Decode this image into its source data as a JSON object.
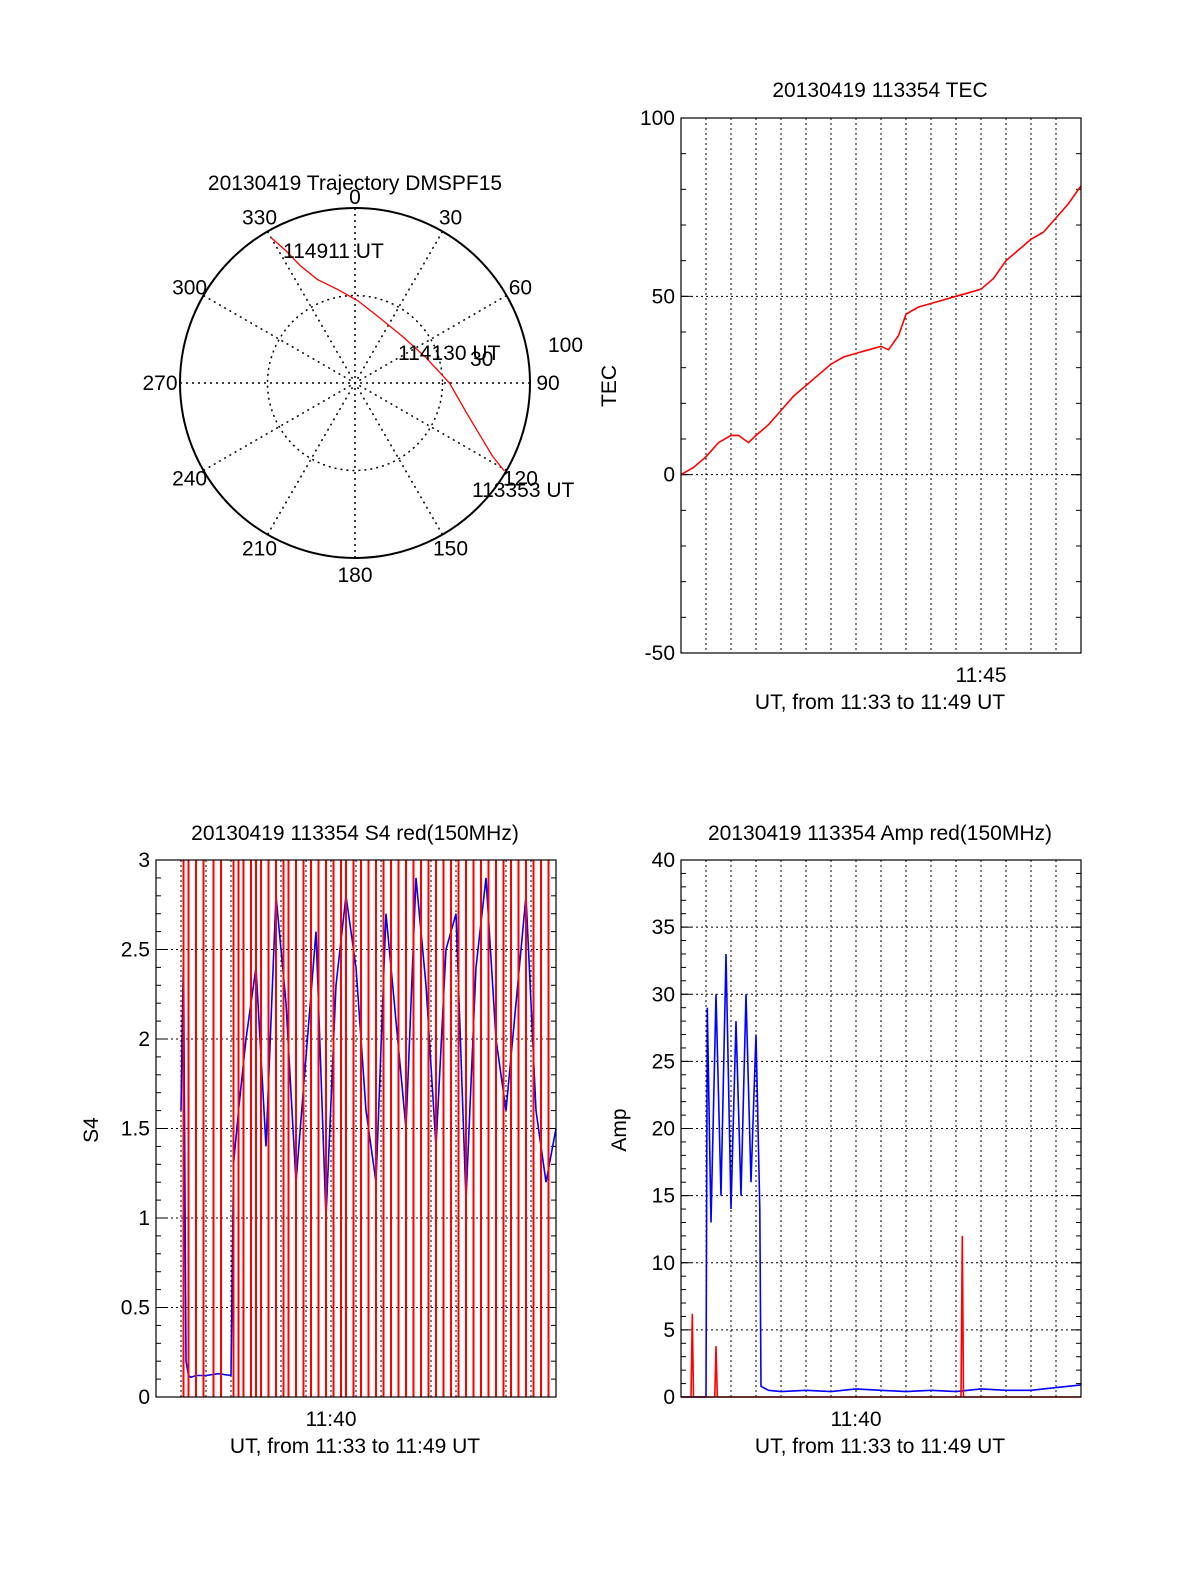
{
  "colors": {
    "red": "#ff0000",
    "blue": "#0000ff",
    "axis": "#000000",
    "grid": "#000000"
  },
  "chart_data": [
    {
      "type": "polar",
      "title": "20130419 Trajectory DMSPF15",
      "angle_labels": [
        "0",
        "30",
        "60",
        "90",
        "120",
        "150",
        "180",
        "210",
        "240",
        "270",
        "300",
        "330"
      ],
      "radius_labels": [
        "30",
        "100"
      ],
      "track_points": [
        {
          "az": 330.0,
          "r": 96
        },
        {
          "az": 332.5,
          "r": 85
        },
        {
          "az": 335.0,
          "r": 74
        },
        {
          "az": 340.0,
          "r": 63
        },
        {
          "az": 350.0,
          "r": 54
        },
        {
          "az": 2.0,
          "r": 47
        },
        {
          "az": 20.0,
          "r": 40
        },
        {
          "az": 45.0,
          "r": 38
        },
        {
          "az": 70.0,
          "r": 43
        },
        {
          "az": 90.0,
          "r": 54
        },
        {
          "az": 105.0,
          "r": 66
        },
        {
          "az": 113.0,
          "r": 78
        },
        {
          "az": 118.0,
          "r": 89
        },
        {
          "az": 120.5,
          "r": 99
        }
      ],
      "annotations": [
        "114911 UT",
        "114130 UT",
        "113353 UT"
      ]
    },
    {
      "type": "line",
      "title": "20130419 113354 TEC",
      "xlabel": "UT, from 11:33 to 11:49 UT",
      "ylabel": "TEC",
      "xlim": [
        0,
        16
      ],
      "ylim": [
        -50,
        100
      ],
      "yticks": [
        "-50",
        "0",
        "50",
        "100"
      ],
      "xticks": [
        {
          "x": 12,
          "label": "11:45"
        }
      ],
      "grid": true,
      "series": [
        {
          "color": "red",
          "x": [
            0,
            0.5,
            1,
            1.5,
            2,
            2.3,
            2.7,
            3,
            3.5,
            4,
            4.5,
            5,
            5.5,
            6,
            6.5,
            7,
            7.5,
            8,
            8.3,
            8.7,
            9,
            9.5,
            10,
            10.5,
            11,
            11.5,
            12,
            12.5,
            13,
            13.5,
            14,
            14.5,
            15,
            15.5,
            16
          ],
          "values": [
            0,
            2,
            5,
            9,
            11,
            11,
            9,
            11,
            14,
            18,
            22,
            25,
            28,
            31,
            33,
            34,
            35,
            36,
            35,
            39,
            45,
            47,
            48,
            49,
            50,
            51,
            52,
            55,
            60,
            63,
            66,
            68,
            72,
            76,
            81
          ]
        }
      ]
    },
    {
      "type": "line",
      "title": "20130419 113354 S4 red(150MHz)",
      "xlabel": "UT, from 11:33 to 11:49 UT",
      "ylabel": "S4",
      "xlim": [
        0,
        16
      ],
      "ylim": [
        0,
        3
      ],
      "yticks": [
        "0",
        "0.5",
        "1",
        "1.5",
        "2",
        "2.5",
        "3"
      ],
      "xticks": [
        {
          "x": 7,
          "label": "11:40"
        }
      ],
      "grid": true,
      "series": [
        {
          "color": "blue",
          "x": [
            1,
            1.1,
            1.2,
            1.3,
            1.4,
            1.6,
            2,
            2.5,
            3,
            3.1,
            3.3,
            3.6,
            4,
            4.4,
            4.8,
            5.2,
            5.6,
            6,
            6.4,
            6.8,
            7.2,
            7.6,
            8,
            8.4,
            8.8,
            9.2,
            9.6,
            10,
            10.4,
            10.8,
            11.2,
            11.6,
            12,
            12.4,
            12.8,
            13.2,
            13.6,
            14,
            14.4,
            14.8,
            15.2,
            15.6,
            16
          ],
          "values": [
            1.6,
            2.5,
            0.2,
            0.12,
            0.11,
            0.12,
            0.12,
            0.13,
            0.12,
            1.3,
            1.6,
            2.0,
            2.4,
            1.4,
            2.8,
            2.2,
            1.2,
            1.9,
            2.6,
            1.0,
            2.3,
            2.8,
            2.4,
            1.6,
            1.2,
            2.7,
            2.1,
            1.5,
            2.9,
            2.3,
            1.4,
            2.5,
            2.7,
            1.1,
            2.4,
            2.9,
            2.0,
            1.6,
            2.2,
            2.8,
            1.6,
            1.2,
            1.5
          ]
        },
        {
          "color": "red",
          "x": [
            1.1,
            1.3,
            1.6,
            1.9,
            2.3,
            2.6,
            3.1,
            3.3,
            3.5,
            3.8,
            4,
            4.2,
            4.5,
            4.8,
            5.1,
            5.3,
            5.6,
            5.9,
            6.2,
            6.5,
            6.8,
            7.1,
            7.4,
            7.6,
            7.9,
            8.2,
            8.5,
            8.8,
            9.1,
            9.4,
            9.7,
            10,
            10.3,
            10.6,
            10.9,
            11.2,
            11.5,
            11.8,
            12.1,
            12.4,
            12.7,
            13,
            13.3,
            13.6,
            13.9,
            14.2,
            14.5,
            14.8,
            15.1,
            15.4,
            15.7
          ],
          "values": [
            3,
            3,
            3,
            3,
            3,
            3,
            3,
            3,
            3,
            3,
            3,
            3,
            3,
            3,
            3,
            3,
            3,
            3,
            3,
            3,
            3,
            3,
            3,
            3,
            3,
            3,
            3,
            3,
            3,
            3,
            3,
            3,
            3,
            3,
            3,
            3,
            3,
            3,
            3,
            3,
            3,
            3,
            3,
            3,
            3,
            3,
            3,
            3,
            3,
            3,
            3
          ]
        }
      ]
    },
    {
      "type": "line",
      "title": "20130419 113354 Amp red(150MHz)",
      "xlabel": "UT, from 11:33 to 11:49 UT",
      "ylabel": "Amp",
      "xlim": [
        0,
        16
      ],
      "ylim": [
        0,
        40
      ],
      "yticks": [
        "0",
        "5",
        "10",
        "15",
        "20",
        "25",
        "30",
        "35",
        "40"
      ],
      "xticks": [
        {
          "x": 7,
          "label": "11:40"
        }
      ],
      "grid": true,
      "series": [
        {
          "color": "blue",
          "x": [
            0,
            1,
            1.05,
            1.2,
            1.4,
            1.6,
            1.8,
            2.0,
            2.2,
            2.4,
            2.6,
            2.8,
            3.0,
            3.15,
            3.2,
            3.5,
            4,
            5,
            6,
            7,
            8,
            9,
            10,
            11,
            12,
            13,
            14,
            15,
            16
          ],
          "values": [
            0,
            0,
            29,
            13,
            30,
            15,
            33,
            14,
            28,
            15,
            30,
            16,
            27,
            14,
            0.8,
            0.5,
            0.4,
            0.5,
            0.4,
            0.6,
            0.5,
            0.4,
            0.5,
            0.4,
            0.6,
            0.5,
            0.5,
            0.7,
            0.9
          ]
        },
        {
          "color": "red",
          "x": [
            0,
            0.4,
            0.45,
            0.5,
            1.0,
            1.35,
            1.4,
            1.45,
            2.0,
            11.2,
            11.25,
            11.3,
            16
          ],
          "values": [
            0,
            0,
            6.2,
            0,
            0,
            0,
            3.8,
            0,
            0,
            0,
            12,
            0,
            0
          ]
        }
      ]
    }
  ]
}
